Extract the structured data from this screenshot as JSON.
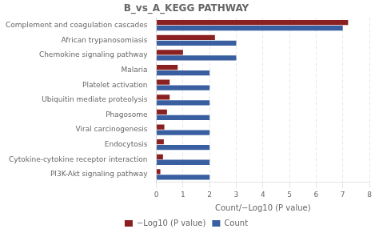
{
  "chart_data": {
    "type": "bar",
    "orientation": "horizontal",
    "title": "B_vs_A_KEGG PATHWAY",
    "xlabel": "Count/−Log10 (P value)",
    "categories": [
      "Complement and coagulation cascades",
      "African trypanosomiasis",
      "Chemokine signaling pathway",
      "Malaria",
      "Platelet activation",
      "Ubiquitin mediate proteolysis",
      "Phagosome",
      "Viral carcinogenesis",
      "Endocytosis",
      "Cytokine-cytokine receptor interaction",
      "PI3K-Akt signaling pathway"
    ],
    "series": [
      {
        "name": "−Log10 (P value)",
        "color": "#8B2020",
        "values": [
          7.2,
          2.2,
          1.0,
          0.8,
          0.5,
          0.5,
          0.4,
          0.3,
          0.28,
          0.25,
          0.15
        ]
      },
      {
        "name": "Count",
        "color": "#3A5FA0",
        "values": [
          7.0,
          3.0,
          3.0,
          2.0,
          2.0,
          2.0,
          2.0,
          2.0,
          2.0,
          2.0,
          2.0
        ]
      }
    ],
    "xlim": [
      0,
      8
    ],
    "xticks": [
      0,
      1,
      2,
      3,
      4,
      5,
      6,
      7,
      8
    ],
    "grid": true,
    "legend": "bottom"
  }
}
